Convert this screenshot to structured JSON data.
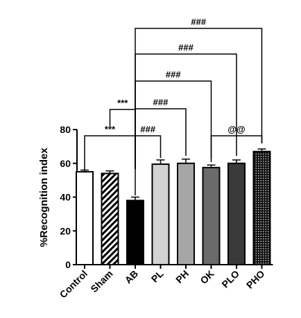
{
  "chart_data": {
    "type": "bar",
    "ylabel": "%Recognition index",
    "ylim": [
      0,
      80
    ],
    "yticks": [
      "0",
      "20",
      "40",
      "60",
      "80"
    ],
    "grid": false,
    "categories": [
      "Control",
      "Sham",
      "AB",
      "PL",
      "PH",
      "OK",
      "PLO",
      "PHO"
    ],
    "values": [
      55,
      54,
      38,
      59.5,
      60,
      57.5,
      60,
      67
    ],
    "errors": [
      1,
      1.5,
      2,
      2.5,
      2.5,
      1.5,
      2,
      1.5
    ],
    "fills": [
      "white",
      "hatch",
      "black",
      "light-gray",
      "gray",
      "dark-gray",
      "charcoal",
      "dotted"
    ],
    "colors": {
      "light-gray": "#d3d3d3",
      "gray": "#a6a6a6",
      "dark-gray": "#6b6b6b",
      "charcoal": "#3a3a3a",
      "black": "#000000"
    },
    "annotations": [
      {
        "label": "***",
        "from": "Control",
        "to": "AB"
      },
      {
        "label": "***",
        "from": "Sham",
        "to": "AB"
      },
      {
        "label": "###",
        "from": "AB",
        "to": "PL"
      },
      {
        "label": "###",
        "from": "AB",
        "to": "PH"
      },
      {
        "label": "###",
        "from": "AB",
        "to": "OK"
      },
      {
        "label": "###",
        "from": "AB",
        "to": "PLO"
      },
      {
        "label": "###",
        "from": "AB",
        "to": "PHO"
      },
      {
        "label": "@@",
        "from": "OK",
        "to": "PHO"
      }
    ]
  }
}
